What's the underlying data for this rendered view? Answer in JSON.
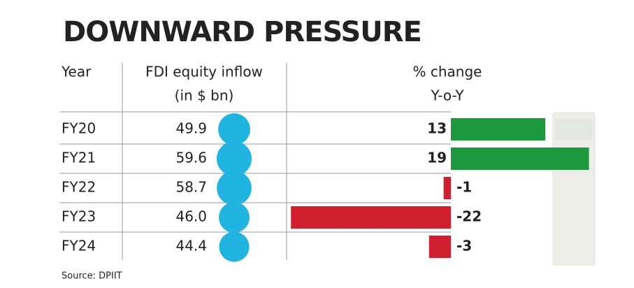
{
  "chart_data": {
    "type": "bar",
    "title": "DOWNWARD PRESSURE",
    "headers": {
      "year": "Year",
      "inflow": [
        "FDI equity inflow",
        "(in $ bn)"
      ],
      "change": [
        "% change",
        "Y-o-Y"
      ]
    },
    "categories": [
      "FY20",
      "FY21",
      "FY22",
      "FY23",
      "FY24"
    ],
    "inflow": {
      "values": [
        49.9,
        59.6,
        58.7,
        46.0,
        44.4
      ],
      "value_labels": [
        "49.9",
        "59.6",
        "58.7",
        "46.0",
        "44.4"
      ],
      "color": "#1fb5e0"
    },
    "change": {
      "values": [
        13,
        19,
        -1,
        -22,
        -3
      ],
      "positive_color": "#1e9a3e",
      "negative_color": "#d0202f"
    },
    "source": "Source: DPIIT"
  }
}
